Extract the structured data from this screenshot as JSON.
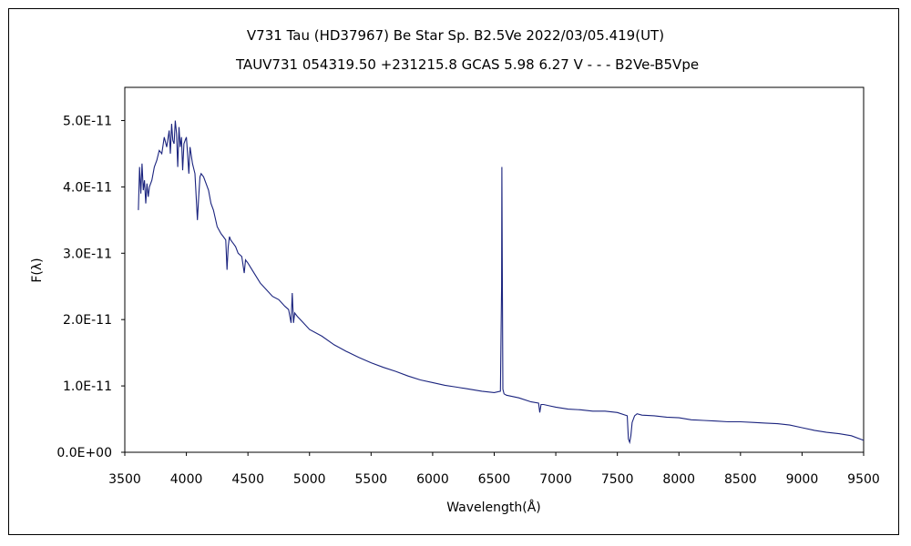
{
  "chart_data": {
    "type": "line",
    "title": "V731 Tau (HD37967)   Be Star   Sp. B2.5Ve   2022/03/05.419(UT)",
    "subtitle": "TAUV731 054319.50 +231215.8 GCAS 5.98 6.27 V - - - B2Ve-B5Vpe",
    "xlabel": "Wavelength(Å)",
    "ylabel": "F(λ)",
    "xlim": [
      3500,
      9500
    ],
    "ylim": [
      0,
      5.5e-11
    ],
    "xticks": [
      3500,
      4000,
      4500,
      5000,
      5500,
      6000,
      6500,
      7000,
      7500,
      8000,
      8500,
      9000,
      9500
    ],
    "yticks": [
      0,
      1e-11,
      2e-11,
      3e-11,
      4e-11,
      5e-11
    ],
    "xtick_labels": [
      "3500",
      "4000",
      "4500",
      "5000",
      "5500",
      "6000",
      "6500",
      "7000",
      "7500",
      "8000",
      "8500",
      "9000",
      "9500"
    ],
    "ytick_labels": [
      "0.0E+00",
      "1.0E-11",
      "2.0E-11",
      "3.0E-11",
      "4.0E-11",
      "5.0E-11"
    ],
    "grid": false,
    "line_color": "#1a237e",
    "series": [
      {
        "x": [
          3610,
          3620,
          3630,
          3640,
          3650,
          3660,
          3670,
          3680,
          3690,
          3700,
          3720,
          3740,
          3760,
          3780,
          3800,
          3820,
          3840,
          3860,
          3870,
          3880,
          3890,
          3900,
          3910,
          3920,
          3930,
          3940,
          3950,
          3960,
          3970,
          3980,
          3990,
          4000,
          4010,
          4020,
          4030,
          4050,
          4070,
          4090,
          4100,
          4110,
          4120,
          4140,
          4160,
          4180,
          4200,
          4220,
          4250,
          4280,
          4300,
          4320,
          4330,
          4340,
          4350,
          4360,
          4380,
          4400,
          4420,
          4450,
          4470,
          4480,
          4500,
          4550,
          4600,
          4650,
          4700,
          4750,
          4800,
          4830,
          4850,
          4860,
          4870,
          4880,
          4900,
          4950,
          5000,
          5100,
          5200,
          5300,
          5400,
          5500,
          5600,
          5700,
          5800,
          5900,
          6000,
          6100,
          6200,
          6300,
          6400,
          6500,
          6550,
          6560,
          6562,
          6565,
          6570,
          6580,
          6600,
          6700,
          6800,
          6860,
          6870,
          6880,
          6900,
          6950,
          7000,
          7100,
          7200,
          7300,
          7400,
          7500,
          7580,
          7590,
          7600,
          7610,
          7620,
          7640,
          7660,
          7700,
          7800,
          7900,
          8000,
          8100,
          8200,
          8300,
          8400,
          8500,
          8600,
          8700,
          8800,
          8900,
          9000,
          9100,
          9200,
          9300,
          9400,
          9500
        ],
        "y": [
          3.65e-11,
          4.3e-11,
          3.9e-11,
          4.35e-11,
          3.95e-11,
          4.1e-11,
          3.75e-11,
          4.05e-11,
          3.85e-11,
          4e-11,
          4.1e-11,
          4.3e-11,
          4.4e-11,
          4.55e-11,
          4.5e-11,
          4.75e-11,
          4.6e-11,
          4.85e-11,
          4.5e-11,
          4.95e-11,
          4.7e-11,
          4.65e-11,
          5e-11,
          4.8e-11,
          4.3e-11,
          4.9e-11,
          4.6e-11,
          4.75e-11,
          4.25e-11,
          4.65e-11,
          4.7e-11,
          4.75e-11,
          4.5e-11,
          4.2e-11,
          4.6e-11,
          4.35e-11,
          4.2e-11,
          3.5e-11,
          3.85e-11,
          4.15e-11,
          4.2e-11,
          4.15e-11,
          4.05e-11,
          3.95e-11,
          3.75e-11,
          3.65e-11,
          3.4e-11,
          3.3e-11,
          3.25e-11,
          3.2e-11,
          2.75e-11,
          3.1e-11,
          3.25e-11,
          3.2e-11,
          3.15e-11,
          3.1e-11,
          3e-11,
          2.95e-11,
          2.7e-11,
          2.9e-11,
          2.85e-11,
          2.7e-11,
          2.55e-11,
          2.45e-11,
          2.35e-11,
          2.3e-11,
          2.2e-11,
          2.15e-11,
          1.95e-11,
          2.4e-11,
          1.95e-11,
          2.1e-11,
          2.05e-11,
          1.95e-11,
          1.85e-11,
          1.75e-11,
          1.62e-11,
          1.52e-11,
          1.43e-11,
          1.35e-11,
          1.28e-11,
          1.22e-11,
          1.15e-11,
          1.09e-11,
          1.05e-11,
          1.01e-11,
          9.8e-12,
          9.5e-12,
          9.2e-12,
          9e-12,
          9.2e-12,
          2.5e-11,
          4.3e-11,
          3e-11,
          9.5e-12,
          8.8e-12,
          8.6e-12,
          8.2e-12,
          7.6e-12,
          7.4e-12,
          6e-12,
          7.2e-12,
          7.2e-12,
          7e-12,
          6.8e-12,
          6.5e-12,
          6.4e-12,
          6.2e-12,
          6.2e-12,
          6e-12,
          5.5e-12,
          2e-12,
          1.5e-12,
          2.5e-12,
          4.5e-12,
          5.5e-12,
          5.8e-12,
          5.6e-12,
          5.5e-12,
          5.3e-12,
          5.2e-12,
          4.9e-12,
          4.8e-12,
          4.7e-12,
          4.6e-12,
          4.6e-12,
          4.5e-12,
          4.4e-12,
          4.3e-12,
          4.1e-12,
          3.7e-12,
          3.3e-12,
          3e-12,
          2.8e-12,
          2.5e-12,
          1.8e-12
        ]
      }
    ]
  }
}
